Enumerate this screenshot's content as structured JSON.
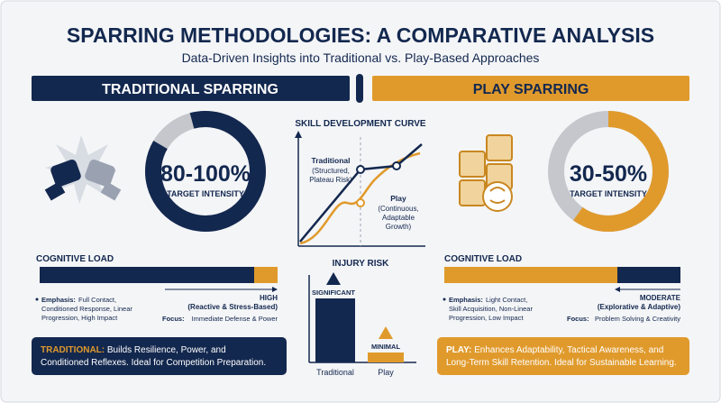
{
  "header": {
    "title": "SPARRING METHODOLOGIES: A COMPARATIVE ANALYSIS",
    "subtitle": "Data-Driven Insights into Traditional vs. Play-Based Approaches"
  },
  "traditional": {
    "banner": "TRADITIONAL SPARRING",
    "intensity": "80-100%",
    "intensity_caption": "TARGET INTENSITY",
    "cognitive_load": {
      "title": "COGNITIVE LOAD",
      "level": "HIGH",
      "detail": "(Reactive & Stress-Based)"
    },
    "emphasis": {
      "label": "Emphasis:",
      "lines": [
        "Full Contact,",
        "Conditioned Response, Linear",
        "Progression, High Impact"
      ]
    },
    "focus": {
      "label": "Focus:",
      "text": "Immediate Defense & Power"
    },
    "summary": {
      "lead": "TRADITIONAL:",
      "lines": [
        "Builds Resilience, Power, and",
        "Conditioned Reflexes. Ideal for Competition Preparation."
      ]
    }
  },
  "play": {
    "banner": "PLAY SPARRING",
    "intensity": "30-50%",
    "intensity_caption": "TARGET INTENSITY",
    "cognitive_load": {
      "title": "COGNITIVE LOAD",
      "level": "MODERATE",
      "detail": "(Explorative & Adaptive)"
    },
    "emphasis": {
      "label": "Emphasis:",
      "lines": [
        "Light Contact,",
        "Skill Acquisition, Non-Linear",
        "Progression, Low Impact"
      ]
    },
    "focus": {
      "label": "Focus:",
      "text": "Problem Solving & Creativity"
    },
    "summary": {
      "lead": "PLAY:",
      "lines": [
        "Enhances Adaptability, Tactical Awareness, and",
        "Long-Term Skill Retention. Ideal for Sustainable Learning."
      ]
    }
  },
  "curve": {
    "title": "SKILL DEVELOPMENT CURVE",
    "traditional": {
      "label": "Traditional",
      "note": [
        "(Structured,",
        "Plateau Risk)"
      ]
    },
    "play": {
      "label": "Play",
      "note": [
        "(Continuous,",
        "Adaptable",
        "Growth)"
      ]
    }
  },
  "injury": {
    "title": "INJURY RISK",
    "bars": [
      {
        "name": "Traditional",
        "label": "SIGNIFICANT"
      },
      {
        "name": "Play",
        "label": "MINIMAL"
      }
    ]
  }
}
